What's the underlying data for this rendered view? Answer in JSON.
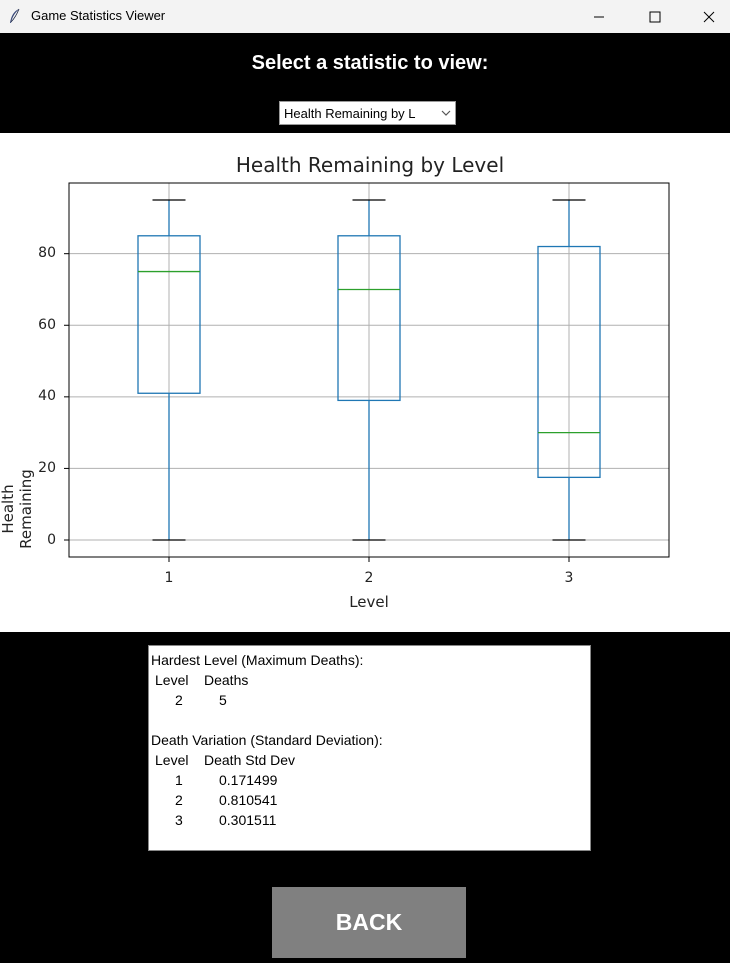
{
  "window": {
    "title": "Game Statistics Viewer",
    "icon": "feather-icon",
    "controls": [
      "minimize-icon",
      "maximize-icon",
      "close-icon"
    ]
  },
  "prompt": "Select a statistic to view:",
  "dropdown": {
    "selected": "Health Remaining by L"
  },
  "chart": {
    "title": "Health Remaining by Level",
    "xlabel": "Level",
    "ylabel": "Health Remaining",
    "yticks": [
      "0",
      "20",
      "40",
      "60",
      "80"
    ],
    "xticks": [
      "1",
      "2",
      "3"
    ]
  },
  "chart_data": {
    "type": "box",
    "title": "Health Remaining by Level",
    "xlabel": "Level",
    "ylabel": "Health Remaining",
    "categories": [
      "1",
      "2",
      "3"
    ],
    "boxes": [
      {
        "min": 0,
        "q1": 41,
        "median": 75,
        "q3": 85,
        "max": 95
      },
      {
        "min": 0,
        "q1": 39,
        "median": 70,
        "q3": 85,
        "max": 95
      },
      {
        "min": 0,
        "q1": 17.5,
        "median": 30,
        "q3": 82,
        "max": 95
      }
    ],
    "ylim": [
      -4.75,
      99.75
    ],
    "grid": true,
    "colors": {
      "box": "#1f77b4",
      "median": "#2ca02c",
      "whisker_cap": "#000000",
      "grid": "#b0b0b0"
    }
  },
  "stats": {
    "hardest_heading": "Hardest Level (Maximum Deaths):",
    "hardest_columns": [
      "Level",
      "Deaths"
    ],
    "hardest_rows": [
      [
        "2",
        "5"
      ]
    ],
    "variation_heading": "Death Variation (Standard Deviation):",
    "variation_columns": [
      "Level",
      "Death Std Dev"
    ],
    "variation_rows": [
      [
        "1",
        "0.171499"
      ],
      [
        "2",
        "0.810541"
      ],
      [
        "3",
        "0.301511"
      ]
    ]
  },
  "back_label": "BACK"
}
